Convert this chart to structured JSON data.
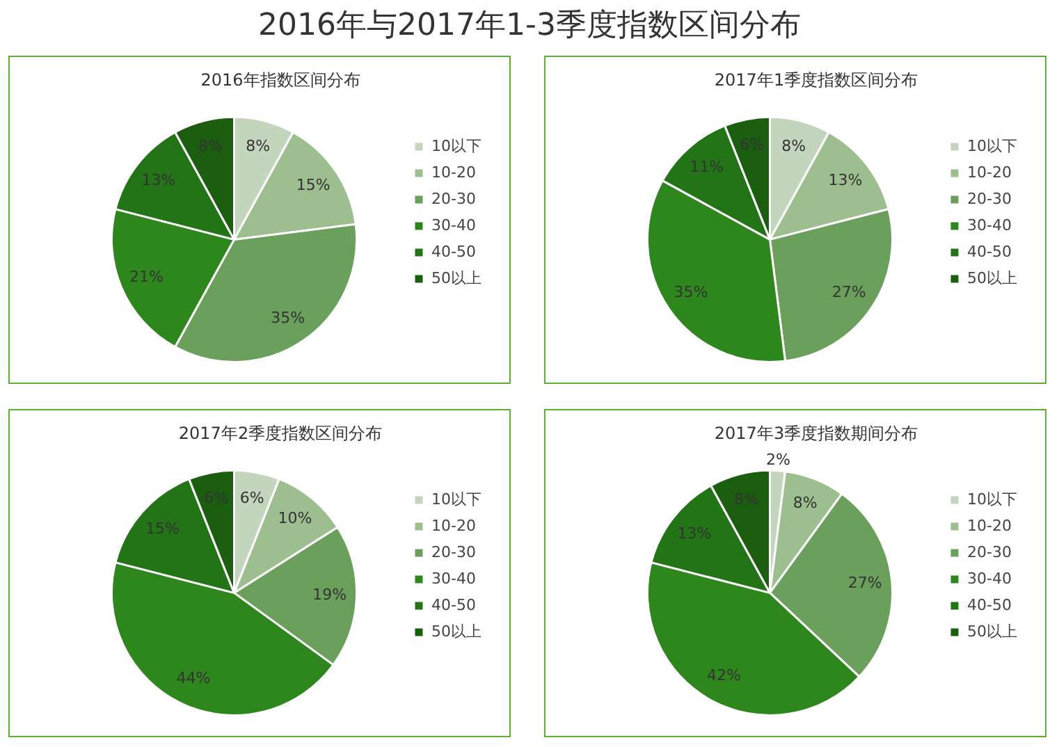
{
  "chart_data": [
    {
      "type": "pie",
      "annotations": [
        "2016年与2017年1-3季度指数区间分布"
      ],
      "title": "2016年指数区间分布",
      "categories": [
        "10以下",
        "10-20",
        "20-30",
        "30-40",
        "40-50",
        "50以上"
      ],
      "values": [
        8,
        15,
        35,
        21,
        13,
        8
      ],
      "colors": [
        "#c3d5bc",
        "#9dbf90",
        "#6a9f5c",
        "#2e871c",
        "#237417",
        "#1b5e10"
      ],
      "value_labels": [
        "8%",
        "15%",
        "35%",
        "21%",
        "13%",
        "8%"
      ],
      "legend": "right"
    },
    {
      "type": "pie",
      "title": "2017年1季度指数区间分布",
      "categories": [
        "10以下",
        "10-20",
        "20-30",
        "30-40",
        "40-50",
        "50以上"
      ],
      "values": [
        8,
        13,
        27,
        35,
        11,
        6
      ],
      "colors": [
        "#c3d5bc",
        "#9dbf90",
        "#6a9f5c",
        "#2e871c",
        "#237417",
        "#1b5e10"
      ],
      "value_labels": [
        "8%",
        "13%",
        "27%",
        "35%",
        "11%",
        "6%"
      ],
      "legend": "right"
    },
    {
      "type": "pie",
      "title": "2017年2季度指数区间分布",
      "categories": [
        "10以下",
        "10-20",
        "20-30",
        "30-40",
        "40-50",
        "50以上"
      ],
      "values": [
        6,
        10,
        19,
        44,
        15,
        6
      ],
      "colors": [
        "#c3d5bc",
        "#9dbf90",
        "#6a9f5c",
        "#2e871c",
        "#237417",
        "#1b5e10"
      ],
      "value_labels": [
        "6%",
        "10%",
        "19%",
        "44%",
        "15%",
        "6%"
      ],
      "legend": "right"
    },
    {
      "type": "pie",
      "title": "2017年3季度指数期间分布",
      "categories": [
        "10以下",
        "10-20",
        "20-30",
        "30-40",
        "40-50",
        "50以上"
      ],
      "values": [
        2,
        8,
        27,
        42,
        13,
        8
      ],
      "colors": [
        "#c3d5bc",
        "#9dbf90",
        "#6a9f5c",
        "#2e871c",
        "#237417",
        "#1b5e10"
      ],
      "value_labels": [
        "2%",
        "8%",
        "27%",
        "42%",
        "13%",
        "8%"
      ],
      "legend": "right"
    }
  ]
}
